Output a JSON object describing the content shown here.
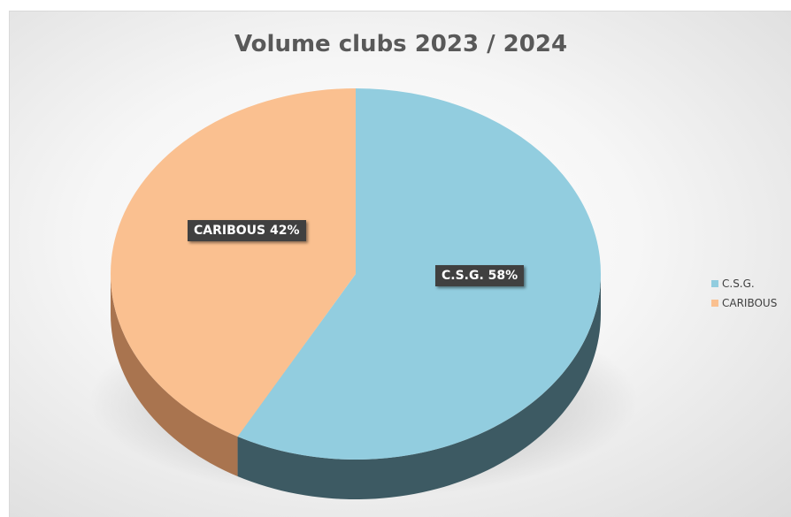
{
  "chart_data": {
    "type": "pie",
    "title": "Volume clubs 2023 / 2024",
    "slices": [
      {
        "name": "C.S.G.",
        "value": 58,
        "color": "#92cddf",
        "side_color": "#3d5a63",
        "label": "C.S.G. 58%"
      },
      {
        "name": "CARIBOUS",
        "value": 42,
        "color": "#fac090",
        "side_color": "#a9744f",
        "label": "CARIBOUS 42%"
      }
    ],
    "legend_position": "right",
    "style": "3d"
  }
}
